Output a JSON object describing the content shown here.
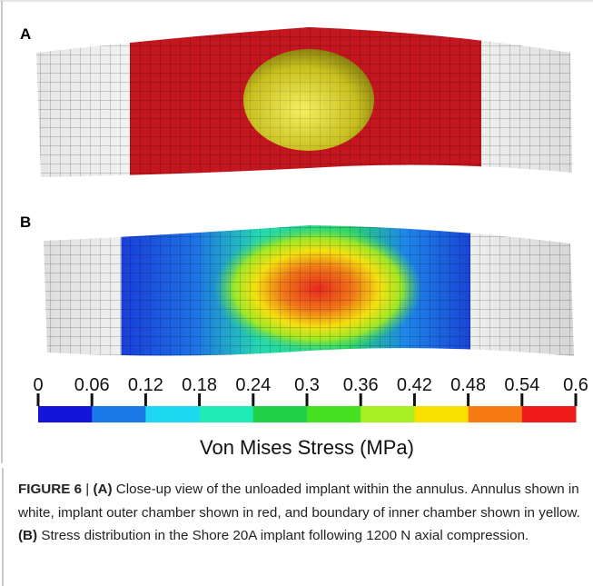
{
  "panels": [
    {
      "label": "A"
    },
    {
      "label": "B"
    }
  ],
  "colorbar": {
    "ticks": [
      0,
      0.06,
      0.12,
      0.18,
      0.24,
      0.3,
      0.36,
      0.42,
      0.48,
      0.54,
      0.6
    ],
    "colors": [
      "#1414dc",
      "#1a78e8",
      "#1ed8f2",
      "#1eecb4",
      "#22d048",
      "#46e022",
      "#a8ee22",
      "#f8e000",
      "#f77a12",
      "#ef1a1a"
    ],
    "label": "Von Mises Stress (MPa)"
  },
  "caption": {
    "figure_label": "FIGURE 6",
    "separator": "|",
    "part_a_label": "(A)",
    "part_a_text": "Close-up view of the unloaded implant within the annulus. Annulus shown in white, implant outer chamber shown in red, and boundary of inner chamber shown in yellow.",
    "part_b_label": "(B)",
    "part_b_text": "Stress distribution in the Shore 20A implant following 1200 N axial compression."
  }
}
